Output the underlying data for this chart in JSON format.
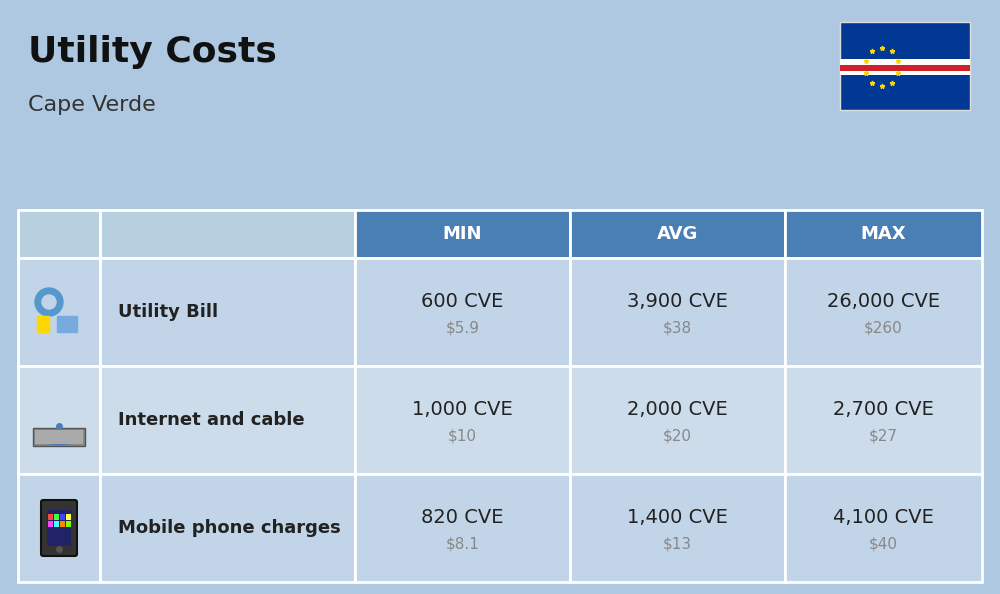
{
  "title": "Utility Costs",
  "subtitle": "Cape Verde",
  "background_color": "#adc8e0",
  "header_bg_color": "#4a7fb5",
  "header_text_color": "#ffffff",
  "row_bg_color_1": "#c2d5e8",
  "row_bg_color_2": "#ccdcea",
  "icon_col_bg": "#b8cfe0",
  "columns": [
    "MIN",
    "AVG",
    "MAX"
  ],
  "rows": [
    {
      "label": "Utility Bill",
      "icon": "utility",
      "min_cve": "600 CVE",
      "min_usd": "$5.9",
      "avg_cve": "3,900 CVE",
      "avg_usd": "$38",
      "max_cve": "26,000 CVE",
      "max_usd": "$260"
    },
    {
      "label": "Internet and cable",
      "icon": "internet",
      "min_cve": "1,000 CVE",
      "min_usd": "$10",
      "avg_cve": "2,000 CVE",
      "avg_usd": "$20",
      "max_cve": "2,700 CVE",
      "max_usd": "$27"
    },
    {
      "label": "Mobile phone charges",
      "icon": "mobile",
      "min_cve": "820 CVE",
      "min_usd": "$8.1",
      "avg_cve": "1,400 CVE",
      "avg_usd": "$13",
      "max_cve": "4,100 CVE",
      "max_usd": "$40"
    }
  ],
  "cve_fontsize": 14,
  "usd_fontsize": 11,
  "label_fontsize": 13,
  "header_fontsize": 13,
  "title_fontsize": 26,
  "subtitle_fontsize": 16,
  "cell_text_color": "#222222",
  "usd_text_color": "#888888",
  "white_color": "#ffffff"
}
